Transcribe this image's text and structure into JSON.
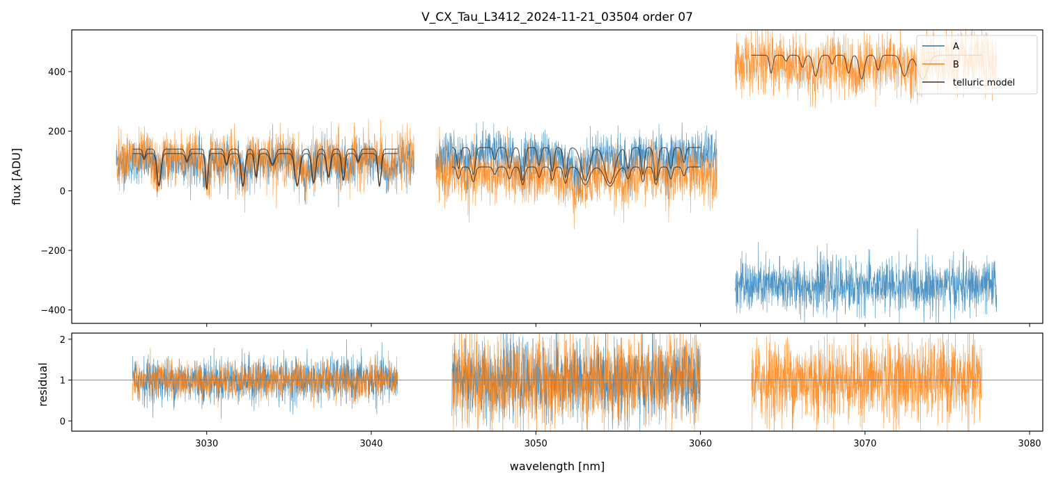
{
  "colors": {
    "A": "#1f77b4",
    "B": "#ff7f0e",
    "model": "#333333",
    "refline": "#808080"
  },
  "chart_data": [
    {
      "panel": "top",
      "type": "line",
      "title": "V_CX_Tau_L3412_2024-11-21_03504  order 07",
      "xlabel": "",
      "ylabel": "flux [ADU]",
      "xlim": [
        3021.8,
        3080.8
      ],
      "ylim": [
        -445,
        540
      ],
      "yticks": [
        {
          "value": 400,
          "label": "400"
        },
        {
          "value": 200,
          "label": "200"
        },
        {
          "value": 0,
          "label": "0"
        },
        {
          "value": -200,
          "label": "−200"
        },
        {
          "value": -400,
          "label": "−400"
        }
      ],
      "xticks": [
        3030,
        3040,
        3050,
        3060,
        3070,
        3080
      ],
      "legend": {
        "position": "top-right",
        "entries": [
          "A",
          "B",
          "telluric model"
        ]
      },
      "segments": [
        {
          "xrange": [
            3024.5,
            3042.6
          ],
          "series": {
            "A": {
              "baseline": 100,
              "noise": 38,
              "dips": [
                [
                  3027.0,
                  80,
                  0.18
                ],
                [
                  3030.0,
                  90,
                  0.15
                ],
                [
                  3032.3,
                  60,
                  0.25
                ],
                [
                  3036.0,
                  70,
                  0.3
                ],
                [
                  3038.5,
                  60,
                  0.2
                ],
                [
                  3041.0,
                  70,
                  0.2
                ]
              ]
            },
            "B": {
              "baseline": 110,
              "noise": 45,
              "dips": [
                [
                  3027.0,
                  70,
                  0.18
                ],
                [
                  3030.0,
                  90,
                  0.15
                ],
                [
                  3032.3,
                  60,
                  0.25
                ],
                [
                  3036.0,
                  70,
                  0.3
                ],
                [
                  3038.5,
                  60,
                  0.2
                ],
                [
                  3041.0,
                  70,
                  0.2
                ]
              ]
            }
          },
          "models": [
            {
              "xrange": [
                3025.5,
                3041.6
              ],
              "level": 140,
              "dips": [
                [
                  3026.2,
                  30,
                  0.08
                ],
                [
                  3027.1,
                  120,
                  0.12
                ],
                [
                  3028.8,
                  40,
                  0.1
                ],
                [
                  3030.0,
                  130,
                  0.08
                ],
                [
                  3031.2,
                  50,
                  0.1
                ],
                [
                  3032.2,
                  120,
                  0.12
                ],
                [
                  3033.0,
                  90,
                  0.1
                ],
                [
                  3034.0,
                  50,
                  0.15
                ],
                [
                  3035.5,
                  120,
                  0.15
                ],
                [
                  3036.5,
                  110,
                  0.12
                ],
                [
                  3037.4,
                  90,
                  0.12
                ],
                [
                  3038.3,
                  100,
                  0.1
                ],
                [
                  3039.2,
                  40,
                  0.1
                ],
                [
                  3040.5,
                  120,
                  0.1
                ]
              ]
            },
            {
              "xrange": [
                3025.5,
                3041.6
              ],
              "level": 125,
              "dips": [
                [
                  3026.2,
                  20,
                  0.08
                ],
                [
                  3027.1,
                  110,
                  0.12
                ],
                [
                  3028.8,
                  30,
                  0.1
                ],
                [
                  3030.0,
                  120,
                  0.08
                ],
                [
                  3031.2,
                  40,
                  0.1
                ],
                [
                  3032.2,
                  110,
                  0.12
                ],
                [
                  3033.0,
                  80,
                  0.1
                ],
                [
                  3034.0,
                  40,
                  0.15
                ],
                [
                  3035.5,
                  110,
                  0.15
                ],
                [
                  3036.5,
                  100,
                  0.12
                ],
                [
                  3037.4,
                  80,
                  0.12
                ],
                [
                  3038.3,
                  90,
                  0.1
                ],
                [
                  3039.2,
                  30,
                  0.1
                ],
                [
                  3040.5,
                  110,
                  0.1
                ]
              ]
            }
          ]
        },
        {
          "xrange": [
            3043.9,
            3061.0
          ],
          "series": {
            "A": {
              "baseline": 120,
              "noise": 40,
              "dips": [
                [
                  3046.0,
                  60,
                  0.2
                ],
                [
                  3049.0,
                  50,
                  0.25
                ],
                [
                  3052.5,
                  80,
                  0.5
                ],
                [
                  3055.5,
                  60,
                  0.3
                ],
                [
                  3058.0,
                  40,
                  0.2
                ]
              ]
            },
            "B": {
              "baseline": 55,
              "noise": 45,
              "dips": [
                [
                  3046.0,
                  40,
                  0.2
                ],
                [
                  3049.0,
                  40,
                  0.25
                ],
                [
                  3052.5,
                  70,
                  0.5
                ],
                [
                  3055.5,
                  50,
                  0.3
                ],
                [
                  3058.0,
                  30,
                  0.2
                ]
              ]
            }
          },
          "models": [
            {
              "xrange": [
                3044.9,
                3060.0
              ],
              "level": 145,
              "dips": [
                [
                  3045.3,
                  70,
                  0.1
                ],
                [
                  3046.2,
                  90,
                  0.12
                ],
                [
                  3047.5,
                  40,
                  0.1
                ],
                [
                  3048.4,
                  70,
                  0.12
                ],
                [
                  3049.2,
                  110,
                  0.12
                ],
                [
                  3050.2,
                  60,
                  0.1
                ],
                [
                  3051.0,
                  80,
                  0.1
                ],
                [
                  3051.8,
                  100,
                  0.12
                ],
                [
                  3053.0,
                  110,
                  0.25
                ],
                [
                  3054.5,
                  120,
                  0.3
                ],
                [
                  3055.6,
                  70,
                  0.12
                ],
                [
                  3056.5,
                  90,
                  0.1
                ],
                [
                  3057.3,
                  110,
                  0.12
                ],
                [
                  3058.2,
                  70,
                  0.1
                ],
                [
                  3059.0,
                  50,
                  0.1
                ]
              ]
            },
            {
              "xrange": [
                3044.9,
                3060.0
              ],
              "level": 80,
              "dips": [
                [
                  3045.3,
                  40,
                  0.1
                ],
                [
                  3046.2,
                  50,
                  0.12
                ],
                [
                  3047.5,
                  25,
                  0.1
                ],
                [
                  3048.4,
                  40,
                  0.12
                ],
                [
                  3049.2,
                  60,
                  0.12
                ],
                [
                  3050.2,
                  35,
                  0.1
                ],
                [
                  3051.0,
                  45,
                  0.1
                ],
                [
                  3051.8,
                  55,
                  0.12
                ],
                [
                  3053.0,
                  60,
                  0.25
                ],
                [
                  3054.5,
                  65,
                  0.3
                ],
                [
                  3055.6,
                  40,
                  0.12
                ],
                [
                  3056.5,
                  50,
                  0.1
                ],
                [
                  3057.3,
                  60,
                  0.12
                ],
                [
                  3058.2,
                  40,
                  0.1
                ],
                [
                  3059.0,
                  30,
                  0.1
                ]
              ]
            }
          ]
        },
        {
          "xrange": [
            3062.1,
            3078.0
          ],
          "series": {
            "A": {
              "baseline": -320,
              "noise": 45,
              "dips": []
            },
            "B": {
              "baseline": 430,
              "noise": 50,
              "dips": [
                [
                  3066.8,
                  60,
                  0.3
                ],
                [
                  3069.5,
                  50,
                  0.3
                ],
                [
                  3073.0,
                  50,
                  0.3
                ]
              ]
            }
          },
          "models": [
            {
              "xrange": [
                3063.1,
                3077.1
              ],
              "level": 455,
              "dips": [
                [
                  3064.3,
                  60,
                  0.1
                ],
                [
                  3065.2,
                  20,
                  0.1
                ],
                [
                  3066.2,
                  40,
                  0.12
                ],
                [
                  3067.0,
                  70,
                  0.15
                ],
                [
                  3068.0,
                  30,
                  0.1
                ],
                [
                  3069.0,
                  60,
                  0.12
                ],
                [
                  3069.8,
                  80,
                  0.15
                ],
                [
                  3070.8,
                  50,
                  0.12
                ],
                [
                  3072.4,
                  70,
                  0.2
                ],
                [
                  3073.5,
                  80,
                  0.3
                ]
              ]
            }
          ]
        }
      ]
    },
    {
      "panel": "bottom",
      "type": "line",
      "title": "",
      "xlabel": "wavelength [nm]",
      "ylabel": "residual",
      "xlim": [
        3021.8,
        3080.8
      ],
      "ylim": [
        -0.25,
        2.15
      ],
      "yticks": [
        {
          "value": 2,
          "label": "2"
        },
        {
          "value": 1,
          "label": "1"
        },
        {
          "value": 0,
          "label": "0"
        }
      ],
      "xticks": [
        {
          "value": 3030,
          "label": "3030"
        },
        {
          "value": 3040,
          "label": "3040"
        },
        {
          "value": 3050,
          "label": "3050"
        },
        {
          "value": 3060,
          "label": "3060"
        },
        {
          "value": 3070,
          "label": "3070"
        },
        {
          "value": 3080,
          "label": "3080"
        }
      ],
      "reference_line": 1,
      "segments": [
        {
          "xrange": [
            3025.5,
            3041.6
          ],
          "series": {
            "A": {
              "center": 1.0,
              "noise": 0.28
            },
            "B": {
              "center": 1.0,
              "noise": 0.22
            }
          }
        },
        {
          "xrange": [
            3044.9,
            3060.0
          ],
          "series": {
            "A": {
              "center": 1.0,
              "noise": 0.45
            },
            "B": {
              "center": 1.0,
              "noise": 0.55
            }
          }
        },
        {
          "xrange": [
            3063.1,
            3077.1
          ],
          "series": {
            "B": {
              "center": 1.0,
              "noise": 0.5
            }
          }
        }
      ]
    }
  ]
}
